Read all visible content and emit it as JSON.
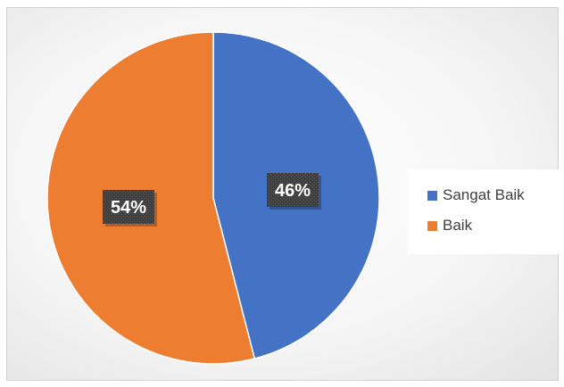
{
  "chart_data": {
    "type": "pie",
    "categories": [
      "Sangat Baik",
      "Baik"
    ],
    "values": [
      46,
      54
    ],
    "labels": [
      "46%",
      "54%"
    ],
    "colors": [
      "#4472C4",
      "#ED7D31"
    ],
    "legend_position": "right",
    "start_angle": "12 o'clock",
    "direction": "clockwise"
  }
}
